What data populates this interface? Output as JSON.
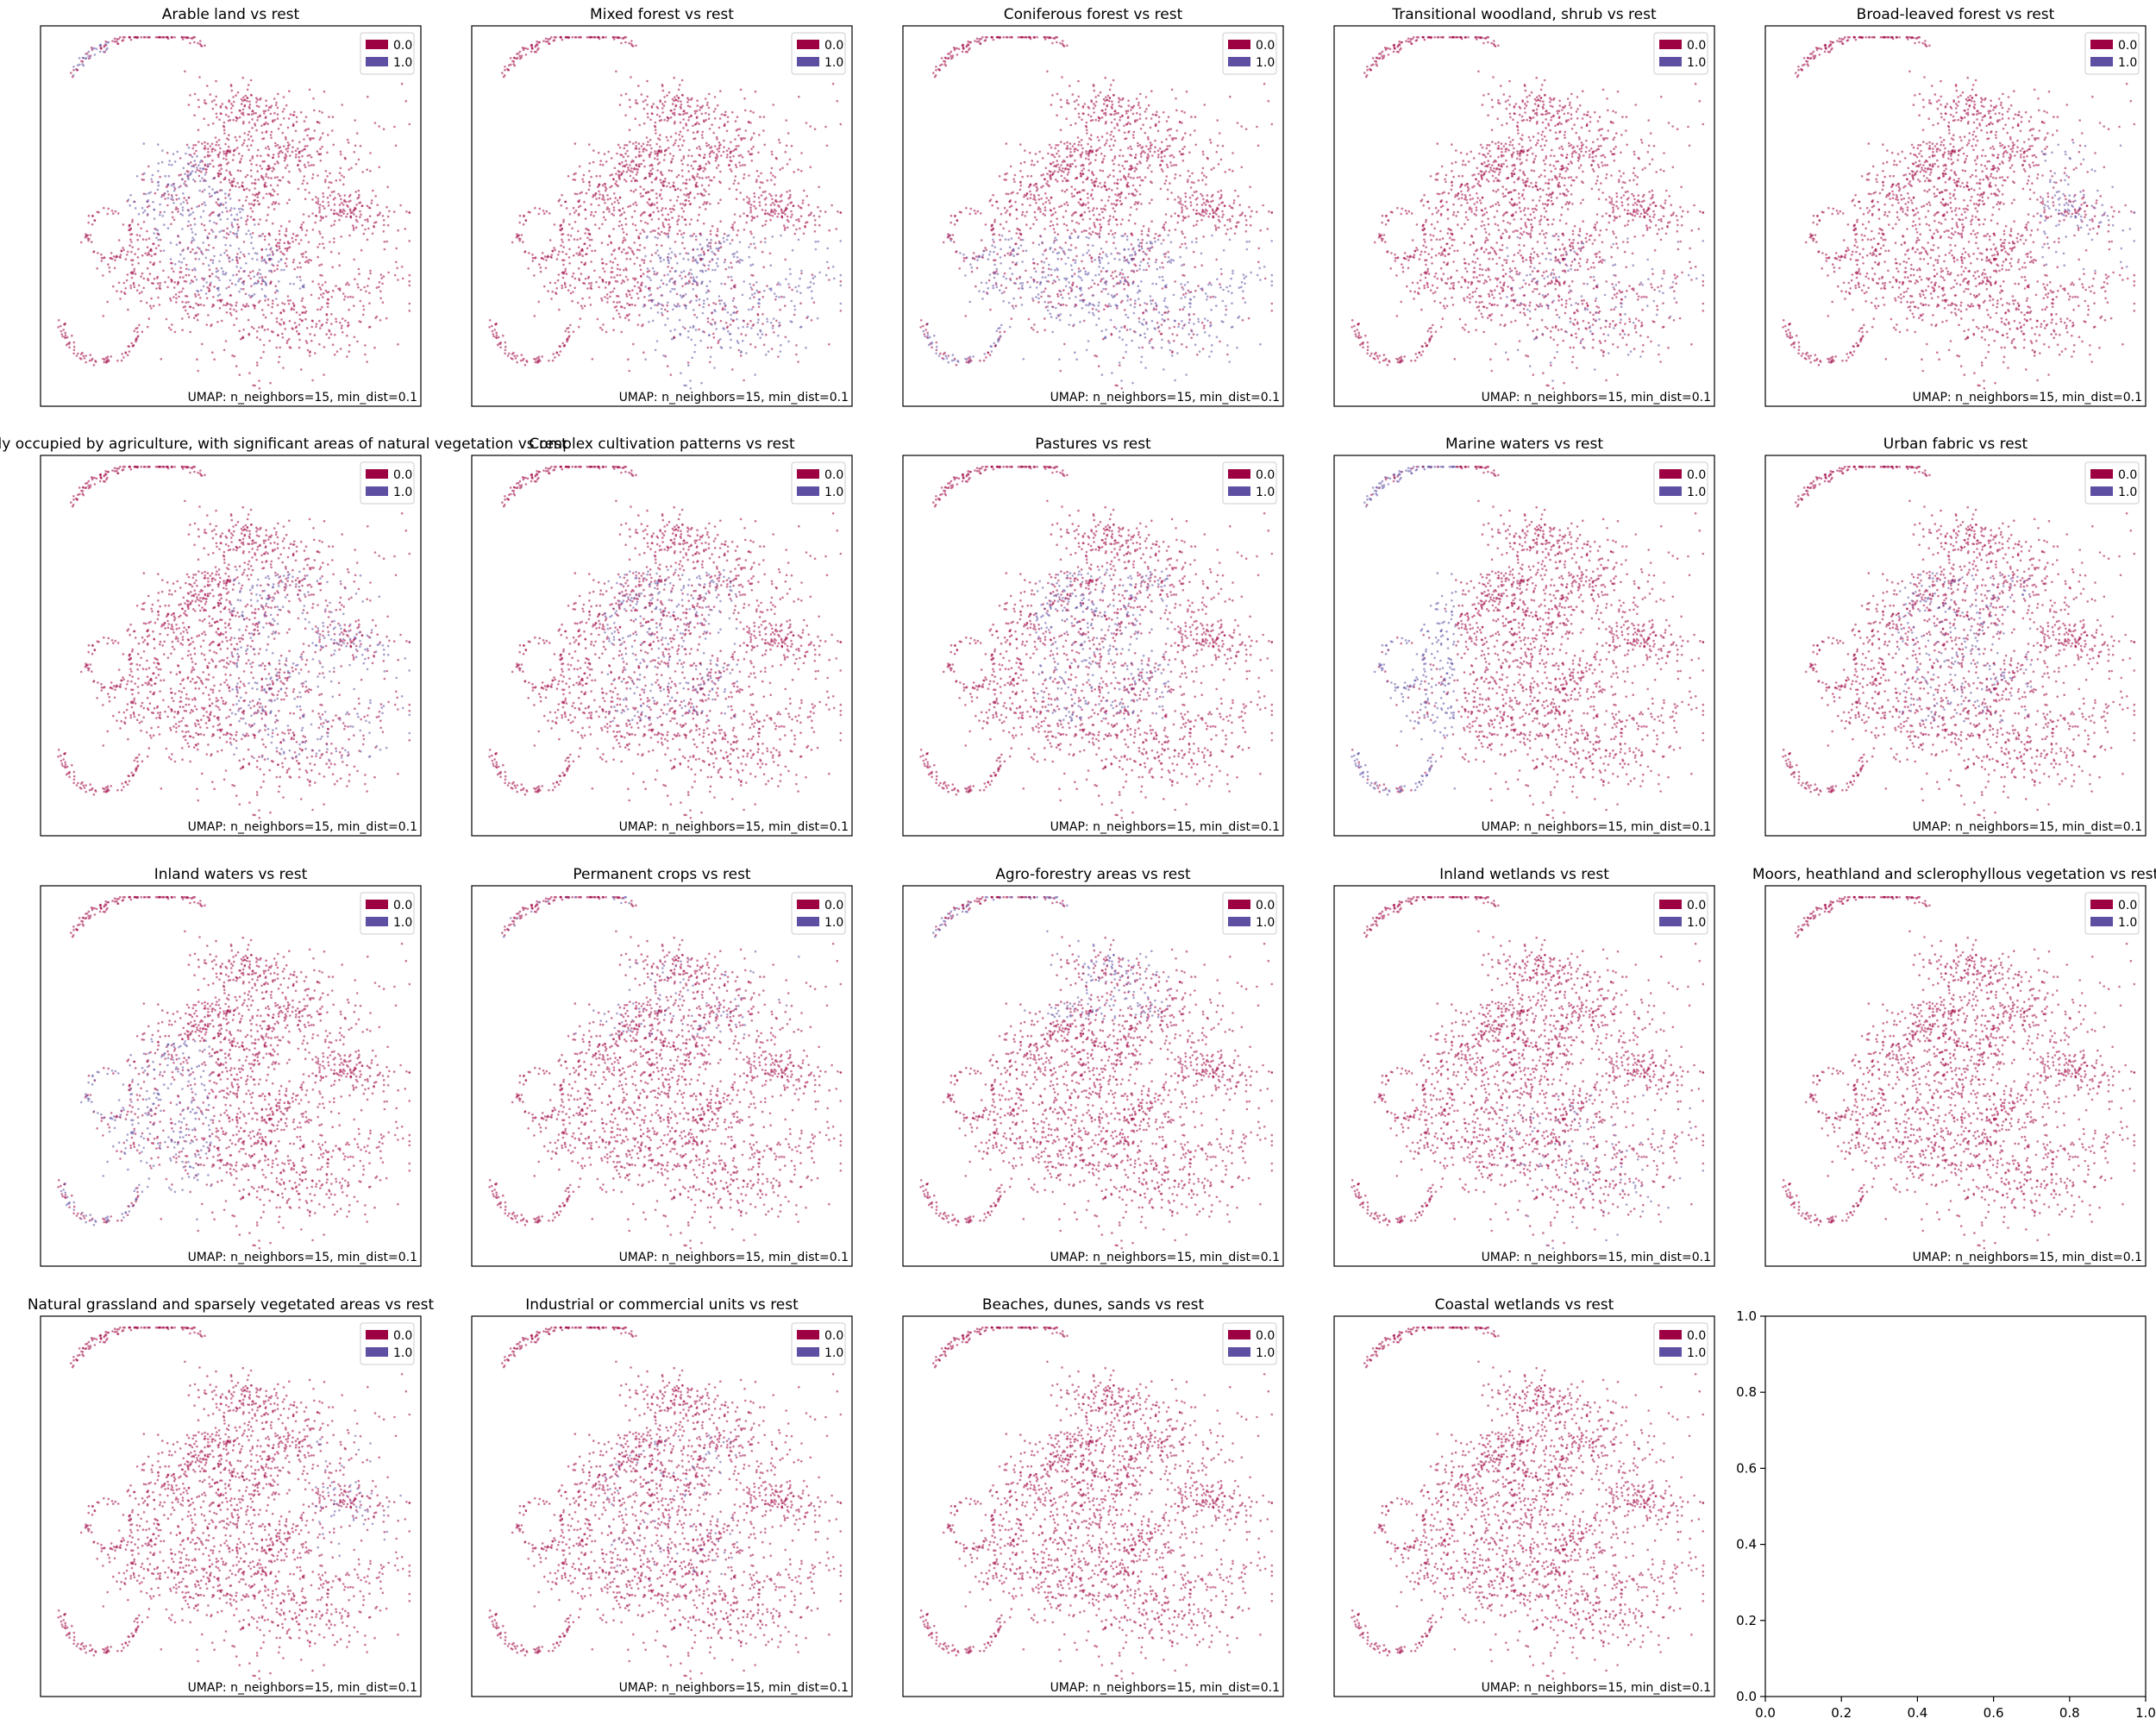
{
  "legend_colors": {
    "0.0": "#9e0142",
    "1.0": "#5e4fa2"
  },
  "shared": {
    "caption": "UMAP: n_neighbors=15, min_dist=0.1",
    "legend_labels": [
      "0.0",
      "1.0"
    ]
  },
  "chart_data": [
    {
      "type": "scatter",
      "title": "Arable land vs rest",
      "embedding": "UMAP",
      "legend_position": "top-right",
      "highlight": "center-diagonal",
      "highlight_strength": 0.55
    },
    {
      "type": "scatter",
      "title": "Mixed forest vs rest",
      "embedding": "UMAP",
      "legend_position": "top-right",
      "highlight": "bottom-right",
      "highlight_strength": 0.6
    },
    {
      "type": "scatter",
      "title": "Coniferous forest vs rest",
      "embedding": "UMAP",
      "legend_position": "top-right",
      "highlight": "lower",
      "highlight_strength": 0.6
    },
    {
      "type": "scatter",
      "title": "Transitional woodland, shrub vs rest",
      "embedding": "UMAP",
      "legend_position": "top-right",
      "highlight": "bottom-right",
      "highlight_strength": 0.25
    },
    {
      "type": "scatter",
      "title": "Broad-leaved forest vs rest",
      "embedding": "UMAP",
      "legend_position": "top-right",
      "highlight": "right",
      "highlight_strength": 0.5
    },
    {
      "type": "scatter",
      "title": "Land principally occupied by agriculture, with significant areas of natural vegetation vs rest",
      "embedding": "UMAP",
      "legend_position": "top-right",
      "highlight": "center-right",
      "highlight_strength": 0.4
    },
    {
      "type": "scatter",
      "title": "Complex cultivation patterns vs rest",
      "embedding": "UMAP",
      "legend_position": "top-right",
      "highlight": "center",
      "highlight_strength": 0.35
    },
    {
      "type": "scatter",
      "title": "Pastures vs rest",
      "embedding": "UMAP",
      "legend_position": "top-right",
      "highlight": "center",
      "highlight_strength": 0.4
    },
    {
      "type": "scatter",
      "title": "Marine waters vs rest",
      "embedding": "UMAP",
      "legend_position": "top-right",
      "highlight": "left-arcs",
      "highlight_strength": 0.8
    },
    {
      "type": "scatter",
      "title": "Urban fabric vs rest",
      "embedding": "UMAP",
      "legend_position": "top-right",
      "highlight": "center",
      "highlight_strength": 0.3
    },
    {
      "type": "scatter",
      "title": "Inland waters vs rest",
      "embedding": "UMAP",
      "legend_position": "top-right",
      "highlight": "left-lower",
      "highlight_strength": 0.5
    },
    {
      "type": "scatter",
      "title": "Permanent crops vs rest",
      "embedding": "UMAP",
      "legend_position": "top-right",
      "highlight": "top",
      "highlight_strength": 0.15
    },
    {
      "type": "scatter",
      "title": "Agro-forestry areas vs rest",
      "embedding": "UMAP",
      "legend_position": "top-right",
      "highlight": "top-left",
      "highlight_strength": 0.45
    },
    {
      "type": "scatter",
      "title": "Inland wetlands vs rest",
      "embedding": "UMAP",
      "legend_position": "top-right",
      "highlight": "bottom-right",
      "highlight_strength": 0.15
    },
    {
      "type": "scatter",
      "title": "Moors, heathland and sclerophyllous vegetation vs rest",
      "embedding": "UMAP",
      "legend_position": "top-right",
      "highlight": "none",
      "highlight_strength": 0.05
    },
    {
      "type": "scatter",
      "title": "Natural grassland and sparsely vegetated areas vs rest",
      "embedding": "UMAP",
      "legend_position": "top-right",
      "highlight": "right",
      "highlight_strength": 0.25
    },
    {
      "type": "scatter",
      "title": "Industrial or commercial units vs rest",
      "embedding": "UMAP",
      "legend_position": "top-right",
      "highlight": "center",
      "highlight_strength": 0.1
    },
    {
      "type": "scatter",
      "title": "Beaches, dunes, sands vs rest",
      "embedding": "UMAP",
      "legend_position": "top-right",
      "highlight": "none",
      "highlight_strength": 0.05
    },
    {
      "type": "scatter",
      "title": "Coastal wetlands vs rest",
      "embedding": "UMAP",
      "legend_position": "top-right",
      "highlight": "none",
      "highlight_strength": 0.05
    },
    {
      "type": "empty",
      "title": "",
      "xlim": [
        0.0,
        1.0
      ],
      "ylim": [
        0.0,
        1.0
      ],
      "xticks": [
        "0.0",
        "0.2",
        "0.4",
        "0.6",
        "0.8",
        "1.0"
      ],
      "yticks": [
        "0.0",
        "0.2",
        "0.4",
        "0.6",
        "0.8",
        "1.0"
      ]
    }
  ]
}
